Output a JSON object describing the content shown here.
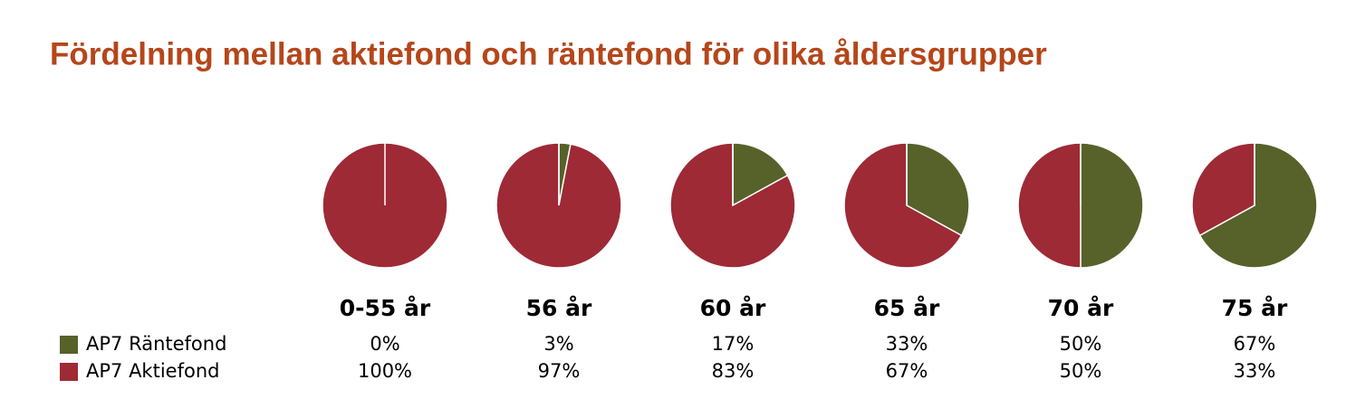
{
  "chart_data": {
    "type": "pie",
    "title": "Fördelning mellan aktiefond och räntefond för olika åldersgrupper",
    "categories": [
      "0-55 år",
      "56 år",
      "60 år",
      "65 år",
      "70 år",
      "75 år"
    ],
    "series": [
      {
        "name": "AP7 Räntefond",
        "color": "#566229",
        "values": [
          0,
          3,
          17,
          33,
          50,
          67
        ],
        "value_labels": [
          "0%",
          "3%",
          "17%",
          "33%",
          "50%",
          "67%"
        ]
      },
      {
        "name": "AP7 Aktiefond",
        "color": "#9e2a35",
        "values": [
          100,
          97,
          83,
          67,
          50,
          33
        ],
        "value_labels": [
          "100%",
          "97%",
          "83%",
          "67%",
          "50%",
          "33%"
        ]
      }
    ]
  }
}
